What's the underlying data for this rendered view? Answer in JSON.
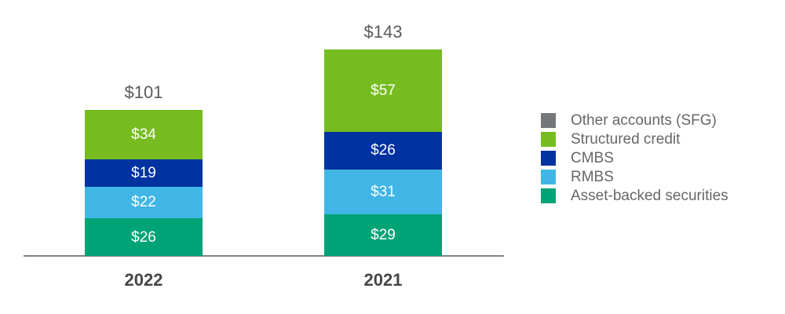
{
  "chart_data": {
    "type": "bar",
    "stacked": true,
    "title": "",
    "categories": [
      "2022",
      "2021"
    ],
    "series": [
      {
        "name": "Structured credit",
        "color": "#76BC21",
        "values": [
          34,
          57
        ],
        "labels": [
          "$34",
          "$57"
        ]
      },
      {
        "name": "CMBS",
        "color": "#0032A0",
        "values": [
          19,
          26
        ],
        "labels": [
          "$19",
          "$26"
        ]
      },
      {
        "name": "RMBS",
        "color": "#41B6E6",
        "values": [
          22,
          31
        ],
        "labels": [
          "$22",
          "$31"
        ]
      },
      {
        "name": "Asset-backed securities",
        "color": "#00A376",
        "values": [
          26,
          29
        ],
        "labels": [
          "$26",
          "$29"
        ]
      }
    ],
    "totals": [
      "$101",
      "$143"
    ],
    "legend": [
      {
        "label": "Other accounts (SFG)",
        "color": "#75787B"
      },
      {
        "label": "Structured credit",
        "color": "#76BC21"
      },
      {
        "label": "CMBS",
        "color": "#0032A0"
      },
      {
        "label": "RMBS",
        "color": "#41B6E6"
      },
      {
        "label": "Asset-backed securities",
        "color": "#00A376"
      }
    ],
    "legend_position": "right",
    "grid": false,
    "value_label_color": "#FFFFFF",
    "total_label_color": "#595A5C",
    "category_label_color": "#454648",
    "legend_text_color": "#66676A",
    "axis_line_color": "#808285"
  }
}
